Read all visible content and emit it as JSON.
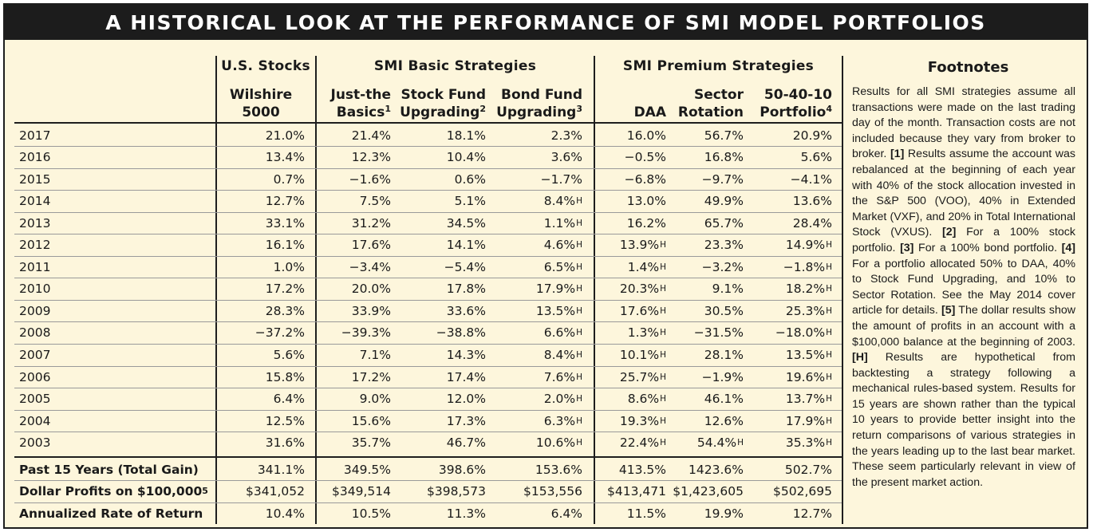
{
  "title": "A HISTORICAL LOOK AT THE PERFORMANCE OF SMI MODEL PORTFOLIOS",
  "groups": {
    "us_stocks": "U.S. Stocks",
    "basic": "SMI Basic Strategies",
    "premium": "SMI Premium Strategies",
    "footnotes": "Footnotes"
  },
  "columns": [
    {
      "line1": "Wilshire",
      "line2": "5000",
      "sup": ""
    },
    {
      "line1": "Just-the",
      "line2": "Basics",
      "sup": "1"
    },
    {
      "line1": "Stock Fund",
      "line2": "Upgrading",
      "sup": "2"
    },
    {
      "line1": "Bond Fund",
      "line2": "Upgrading",
      "sup": "3"
    },
    {
      "line1": "",
      "line2": "DAA",
      "sup": ""
    },
    {
      "line1": "Sector",
      "line2": "Rotation",
      "sup": ""
    },
    {
      "line1": "50-40-10",
      "line2": "Portfolio",
      "sup": "4"
    }
  ],
  "years": [
    {
      "label": "2017",
      "values": [
        "21.0%",
        "21.4%",
        "18.1%",
        "2.3%",
        "16.0%",
        "56.7%",
        "20.9%"
      ],
      "hyp": [
        false,
        false,
        false,
        false,
        false,
        false,
        false
      ]
    },
    {
      "label": "2016",
      "values": [
        "13.4%",
        "12.3%",
        "10.4%",
        "3.6%",
        "−0.5%",
        "16.8%",
        "5.6%"
      ],
      "hyp": [
        false,
        false,
        false,
        false,
        false,
        false,
        false
      ]
    },
    {
      "label": "2015",
      "values": [
        "0.7%",
        "−1.6%",
        "0.6%",
        "−1.7%",
        "−6.8%",
        "−9.7%",
        "−4.1%"
      ],
      "hyp": [
        false,
        false,
        false,
        false,
        false,
        false,
        false
      ]
    },
    {
      "label": "2014",
      "values": [
        "12.7%",
        "7.5%",
        "5.1%",
        "8.4%",
        "13.0%",
        "49.9%",
        "13.6%"
      ],
      "hyp": [
        false,
        false,
        false,
        true,
        false,
        false,
        false
      ]
    },
    {
      "label": "2013",
      "values": [
        "33.1%",
        "31.2%",
        "34.5%",
        "1.1%",
        "16.2%",
        "65.7%",
        "28.4%"
      ],
      "hyp": [
        false,
        false,
        false,
        true,
        false,
        false,
        false
      ]
    },
    {
      "label": "2012",
      "values": [
        "16.1%",
        "17.6%",
        "14.1%",
        "4.6%",
        "13.9%",
        "23.3%",
        "14.9%"
      ],
      "hyp": [
        false,
        false,
        false,
        true,
        true,
        false,
        true
      ]
    },
    {
      "label": "2011",
      "values": [
        "1.0%",
        "−3.4%",
        "−5.4%",
        "6.5%",
        "1.4%",
        "−3.2%",
        "−1.8%"
      ],
      "hyp": [
        false,
        false,
        false,
        true,
        true,
        false,
        true
      ]
    },
    {
      "label": "2010",
      "values": [
        "17.2%",
        "20.0%",
        "17.8%",
        "17.9%",
        "20.3%",
        "9.1%",
        "18.2%"
      ],
      "hyp": [
        false,
        false,
        false,
        true,
        true,
        false,
        true
      ]
    },
    {
      "label": "2009",
      "values": [
        "28.3%",
        "33.9%",
        "33.6%",
        "13.5%",
        "17.6%",
        "30.5%",
        "25.3%"
      ],
      "hyp": [
        false,
        false,
        false,
        true,
        true,
        false,
        true
      ]
    },
    {
      "label": "2008",
      "values": [
        "−37.2%",
        "−39.3%",
        "−38.8%",
        "6.6%",
        "1.3%",
        "−31.5%",
        "−18.0%"
      ],
      "hyp": [
        false,
        false,
        false,
        true,
        true,
        false,
        true
      ]
    },
    {
      "label": "2007",
      "values": [
        "5.6%",
        "7.1%",
        "14.3%",
        "8.4%",
        "10.1%",
        "28.1%",
        "13.5%"
      ],
      "hyp": [
        false,
        false,
        false,
        true,
        true,
        false,
        true
      ]
    },
    {
      "label": "2006",
      "values": [
        "15.8%",
        "17.2%",
        "17.4%",
        "7.6%",
        "25.7%",
        "−1.9%",
        "19.6%"
      ],
      "hyp": [
        false,
        false,
        false,
        true,
        true,
        false,
        true
      ]
    },
    {
      "label": "2005",
      "values": [
        "6.4%",
        "9.0%",
        "12.0%",
        "2.0%",
        "8.6%",
        "46.1%",
        "13.7%"
      ],
      "hyp": [
        false,
        false,
        false,
        true,
        true,
        false,
        true
      ]
    },
    {
      "label": "2004",
      "values": [
        "12.5%",
        "15.6%",
        "17.3%",
        "6.3%",
        "19.3%",
        "12.6%",
        "17.9%"
      ],
      "hyp": [
        false,
        false,
        false,
        true,
        true,
        false,
        true
      ]
    },
    {
      "label": "2003",
      "values": [
        "31.6%",
        "35.7%",
        "46.7%",
        "10.6%",
        "22.4%",
        "54.4%",
        "35.3%"
      ],
      "hyp": [
        false,
        false,
        false,
        true,
        true,
        true,
        true
      ]
    }
  ],
  "summary": [
    {
      "label": "Past 15 Years (Total Gain)",
      "sup": "",
      "values": [
        "341.1%",
        "349.5%",
        "398.6%",
        "153.6%",
        "413.5%",
        "1423.6%",
        "502.7%"
      ]
    },
    {
      "label": "Dollar Profits on $100,000",
      "sup": "5",
      "values": [
        "$341,052",
        "$349,514",
        "$398,573",
        "$153,556",
        "$413,471",
        "$1,423,605",
        "$502,695"
      ]
    },
    {
      "label": "Annualized Rate of Return",
      "sup": "",
      "values": [
        "10.4%",
        "10.5%",
        "11.3%",
        "6.4%",
        "11.5%",
        "19.9%",
        "12.7%"
      ]
    }
  ],
  "hyp_marker": "H",
  "footnotes": [
    {
      "tag": "",
      "text": "Results for all SMI strategies assume all transactions were made on the last trading day of the month. Transaction costs are not included because they vary from broker to broker. "
    },
    {
      "tag": "[1]",
      "text": " Results assume the account was rebalanced at the beginning of each year with 40% of the stock allocation invested in the S&P 500 (VOO), 40% in Extended Market (VXF), and 20% in Total International Stock (VXUS). "
    },
    {
      "tag": "[2]",
      "text": " For a 100% stock portfolio. "
    },
    {
      "tag": "[3]",
      "text": " For a 100% bond portfolio. "
    },
    {
      "tag": "[4]",
      "text": " For a portfolio allocated 50% to DAA, 40% to Stock Fund Upgrading, and 10% to Sector Rotation. See the May 2014 cover article for details. "
    },
    {
      "tag": "[5]",
      "text": " The dollar results show the amount of profits in an account with a $100,000 balance at the beginning of 2003. "
    },
    {
      "tag": "[H]",
      "text": " Results are hypothetical from backtesting a strategy following a mechanical rules-based system. Results for 15 years are shown rather than the typical 10 years to provide better insight into the return comparisons of various strategies in the years leading up to the last bear market. These seem particularly relevant in view of the present market action."
    }
  ]
}
